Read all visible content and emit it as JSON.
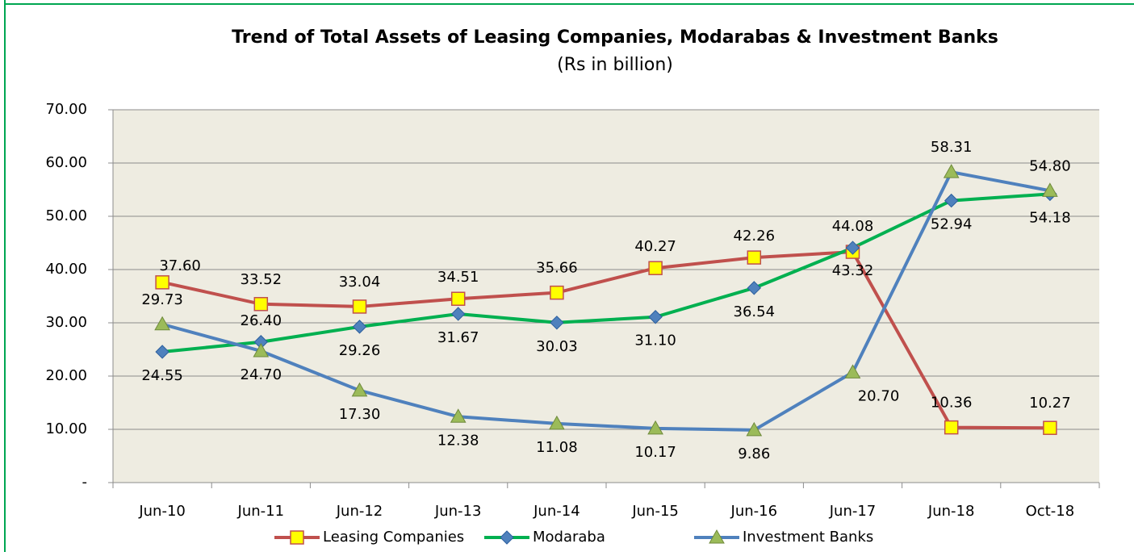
{
  "chart_data": {
    "type": "line",
    "title": "Trend of Total Assets of Leasing Companies, Modarabas & Investment Banks",
    "subtitle": "(Rs in billion)",
    "categories": [
      "Jun-10",
      "Jun-11",
      "Jun-12",
      "Jun-13",
      "Jun-14",
      "Jun-15",
      "Jun-16",
      "Jun-17",
      "Jun-18",
      "Oct-18"
    ],
    "ylim": [
      0,
      70
    ],
    "yticks": [
      {
        "value": 0,
        "label": "-"
      },
      {
        "value": 10,
        "label": "10.00"
      },
      {
        "value": 20,
        "label": "20.00"
      },
      {
        "value": 30,
        "label": "30.00"
      },
      {
        "value": 40,
        "label": "40.00"
      },
      {
        "value": 50,
        "label": "50.00"
      },
      {
        "value": 60,
        "label": "60.00"
      },
      {
        "value": 70,
        "label": "70.00"
      }
    ],
    "grid": true,
    "legend": "bottom",
    "series": [
      {
        "name": "Leasing Companies",
        "color": "#c0504d",
        "marker": "square",
        "marker_color": "#ffff00",
        "values": [
          37.6,
          33.52,
          33.04,
          34.51,
          35.66,
          40.27,
          42.26,
          43.32,
          10.36,
          10.27
        ],
        "value_labels": [
          "37.60",
          "33.52",
          "33.04",
          "34.51",
          "35.66",
          "40.27",
          "42.26",
          "43.32",
          "10.36",
          "10.27"
        ]
      },
      {
        "name": "Modaraba",
        "color": "#00b050",
        "marker": "diamond",
        "marker_color": "#4f81bd",
        "values": [
          24.55,
          26.4,
          29.26,
          31.67,
          30.03,
          31.1,
          36.54,
          44.08,
          52.94,
          54.18
        ],
        "value_labels": [
          "24.55",
          "26.40",
          "29.26",
          "31.67",
          "30.03",
          "31.10",
          "36.54",
          "44.08",
          "52.94",
          "54.18"
        ]
      },
      {
        "name": "Investment Banks",
        "color": "#4f81bd",
        "marker": "triangle",
        "marker_color": "#9bbb59",
        "values": [
          29.73,
          24.7,
          17.3,
          12.38,
          11.08,
          10.17,
          9.86,
          20.7,
          58.31,
          54.8
        ],
        "value_labels": [
          "29.73",
          "24.70",
          "17.30",
          "12.38",
          "11.08",
          "10.17",
          "9.86",
          "20.70",
          "58.31",
          "54.80"
        ]
      }
    ]
  }
}
